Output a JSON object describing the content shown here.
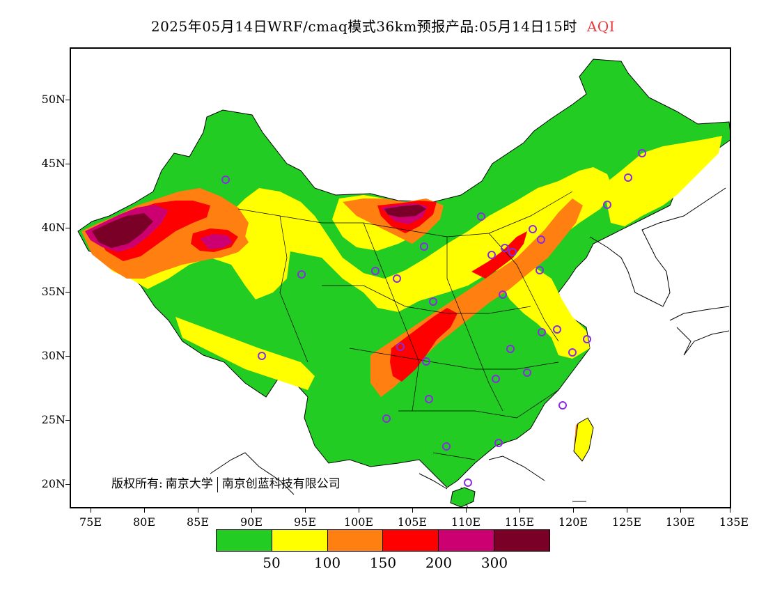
{
  "title": {
    "main": "2025年05月14日WRF/cmaq模式36km预报产品:05月14日15时",
    "aqi": "AQI",
    "aqi_color": "#e8383d"
  },
  "axes": {
    "lat_labels": [
      "50N",
      "45N",
      "40N",
      "35N",
      "30N",
      "25N",
      "20N"
    ],
    "lon_labels": [
      "75E",
      "80E",
      "85E",
      "90E",
      "95E",
      "100E",
      "105E",
      "110E",
      "115E",
      "120E",
      "125E",
      "130E",
      "135E"
    ]
  },
  "copyright": {
    "label": "版权所有:",
    "org1": "南京大学",
    "org2": "南京创蓝科技有限公司"
  },
  "legend": {
    "colors": [
      "#22cc22",
      "#ffff00",
      "#ff8010",
      "#ff0000",
      "#cc0070",
      "#7a0028"
    ],
    "values": [
      "50",
      "100",
      "150",
      "200",
      "300"
    ]
  },
  "map": {
    "station_marker_color": "#8a2be2",
    "aqi_category_colors": {
      "good": "#22cc22",
      "moderate": "#ffff00",
      "unhealthy_sensitive": "#ff8010",
      "unhealthy": "#ff0000",
      "very_unhealthy": "#cc0070",
      "hazardous": "#7a0028"
    }
  }
}
